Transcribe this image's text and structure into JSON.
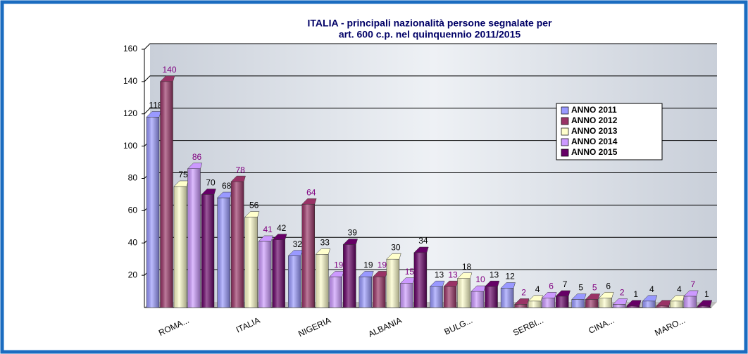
{
  "chart_data": {
    "type": "bar",
    "title": "ITALIA - principali nazionalità persone segnalate per",
    "subtitle": "art. 600 c.p. nel quinquennio 2011/2015",
    "categories": [
      "ROMA...",
      "ITALIA",
      "NIGERIA",
      "ALBANIA",
      "BULG...",
      "SERBI...",
      "CINA...",
      "MARO..."
    ],
    "series": [
      {
        "name": "ANNO 2011",
        "color": "#9999ff",
        "label_color": "#000000",
        "values": [
          118,
          68,
          32,
          19,
          13,
          12,
          5,
          4
        ]
      },
      {
        "name": "ANNO 2012",
        "color": "#993366",
        "label_color": "#800080",
        "values": [
          140,
          78,
          64,
          19,
          13,
          2,
          5,
          1
        ],
        "value_labels": [
          "140",
          "78",
          "64",
          "19",
          "13",
          "2",
          "5",
          null
        ]
      },
      {
        "name": "ANNO 2013",
        "color": "#ffffcc",
        "label_color": "#000000",
        "values": [
          75,
          56,
          33,
          30,
          18,
          4,
          6,
          4
        ]
      },
      {
        "name": "ANNO 2014",
        "color": "#cc99ff",
        "label_color": "#800080",
        "values": [
          86,
          41,
          19,
          15,
          10,
          6,
          2,
          7
        ]
      },
      {
        "name": "ANNO 2015",
        "color": "#660066",
        "label_color": "#000000",
        "values": [
          70,
          42,
          39,
          34,
          13,
          7,
          1,
          1
        ]
      }
    ],
    "ylim": [
      0,
      160
    ],
    "yticks": [
      20,
      40,
      60,
      80,
      100,
      120,
      140,
      160
    ],
    "grid": true,
    "legend": "right"
  }
}
